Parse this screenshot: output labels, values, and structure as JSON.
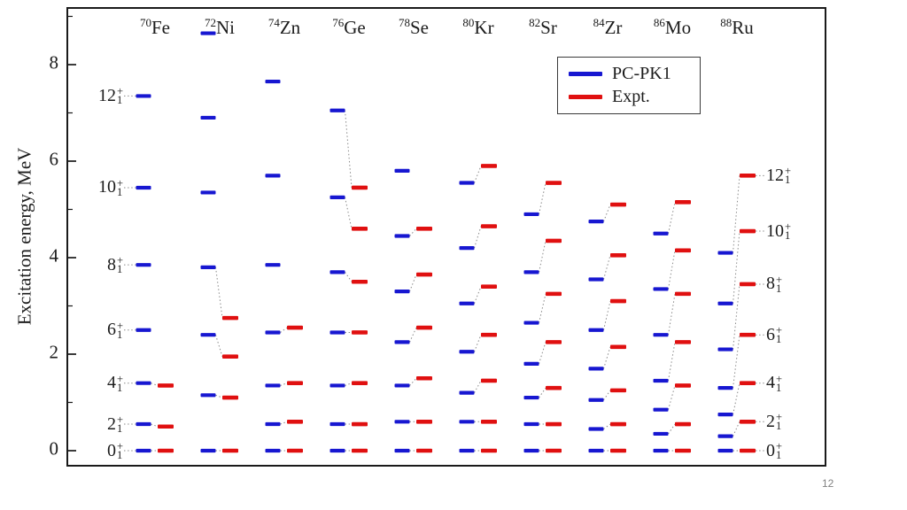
{
  "page_number": "12",
  "chart_data": {
    "type": "scatter",
    "subtype": "nuclear-energy-level-scheme",
    "title": "",
    "xlabel": "",
    "ylabel": "Excitation energy, MeV",
    "ylim": [
      -0.4,
      9.2
    ],
    "yticks": [
      0,
      2,
      4,
      6,
      8
    ],
    "yticks_minor": [
      1,
      3,
      5,
      7,
      9
    ],
    "grid": false,
    "legend_position": "top-right-inside",
    "legend": [
      {
        "label": "PC-PK1",
        "color": "#1717d1"
      },
      {
        "label": "Expt.",
        "color": "#e01010"
      }
    ],
    "spins": [
      "0",
      "2",
      "4",
      "6",
      "8",
      "10",
      "12"
    ],
    "spin_subscript": "1",
    "spin_superscript": "+",
    "nuclei": [
      {
        "mass": "70",
        "element": "Fe",
        "pcpk1": [
          0,
          0.55,
          1.4,
          2.5,
          3.85,
          5.45,
          7.35
        ],
        "expt": [
          0,
          0.5,
          1.35
        ]
      },
      {
        "mass": "72",
        "element": "Ni",
        "pcpk1": [
          0,
          1.15,
          2.4,
          3.8,
          5.35,
          6.9,
          8.65
        ],
        "expt": [
          0,
          1.1,
          1.95,
          2.75
        ]
      },
      {
        "mass": "74",
        "element": "Zn",
        "pcpk1": [
          0,
          0.55,
          1.35,
          2.45,
          3.85,
          5.7,
          7.65
        ],
        "expt": [
          0,
          0.6,
          1.4,
          2.55
        ]
      },
      {
        "mass": "76",
        "element": "Ge",
        "pcpk1": [
          0,
          0.55,
          1.35,
          2.45,
          3.7,
          5.25,
          7.05
        ],
        "expt": [
          0,
          0.55,
          1.4,
          2.45,
          3.5,
          4.6,
          5.45
        ]
      },
      {
        "mass": "78",
        "element": "Se",
        "pcpk1": [
          0,
          0.6,
          1.35,
          2.25,
          3.3,
          4.45,
          5.8
        ],
        "expt": [
          0,
          0.6,
          1.5,
          2.55,
          3.65,
          4.6
        ]
      },
      {
        "mass": "80",
        "element": "Kr",
        "pcpk1": [
          0,
          0.6,
          1.2,
          2.05,
          3.05,
          4.2,
          5.55
        ],
        "expt": [
          0,
          0.6,
          1.45,
          2.4,
          3.4,
          4.65,
          5.9
        ]
      },
      {
        "mass": "82",
        "element": "Sr",
        "pcpk1": [
          0,
          0.55,
          1.1,
          1.8,
          2.65,
          3.7,
          4.9
        ],
        "expt": [
          0,
          0.55,
          1.3,
          2.25,
          3.25,
          4.35,
          5.55
        ]
      },
      {
        "mass": "84",
        "element": "Zr",
        "pcpk1": [
          0,
          0.45,
          1.05,
          1.7,
          2.5,
          3.55,
          4.75
        ],
        "expt": [
          0,
          0.55,
          1.25,
          2.15,
          3.1,
          4.05,
          5.1
        ]
      },
      {
        "mass": "86",
        "element": "Mo",
        "pcpk1": [
          0,
          0.35,
          0.85,
          1.45,
          2.4,
          3.35,
          4.5
        ],
        "expt": [
          0,
          0.55,
          1.35,
          2.25,
          3.25,
          4.15,
          5.15
        ]
      },
      {
        "mass": "88",
        "element": "Ru",
        "pcpk1": [
          0,
          0.3,
          0.75,
          1.3,
          2.1,
          3.05,
          4.1
        ],
        "expt": [
          0,
          0.6,
          1.4,
          2.4,
          3.45,
          4.55,
          5.7
        ]
      }
    ]
  }
}
